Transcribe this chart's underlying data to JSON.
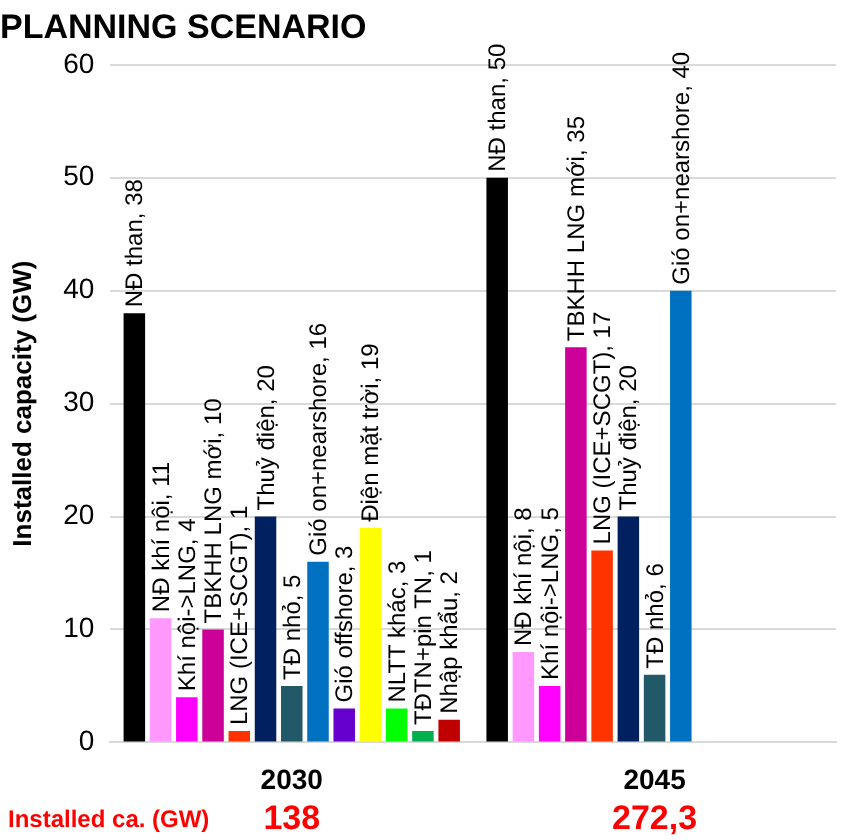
{
  "chart_data": {
    "type": "bar",
    "title": "PLANNING SCENARIO",
    "ylabel": "Installed capacity (GW)",
    "categories": [
      "2030",
      "2045"
    ],
    "series": [
      {
        "color": "#000000",
        "values": [
          38,
          50
        ],
        "value_labels": [
          "NĐ than, 38",
          "NĐ than, 50"
        ]
      },
      {
        "color": "#ff99ff",
        "values": [
          11,
          8
        ],
        "value_labels": [
          "NĐ khí nội, 11",
          "NĐ khí nội, 8"
        ]
      },
      {
        "color": "#ff00ff",
        "values": [
          4,
          5
        ],
        "value_labels": [
          "Khí nội->LNG, 4",
          "Khí nội->LNG, 5"
        ]
      },
      {
        "color": "#cc0099",
        "values": [
          10,
          35
        ],
        "value_labels": [
          "TBKHH LNG mới, 10",
          "TBKHH LNG mới, 35"
        ]
      },
      {
        "color": "#ff3300",
        "values": [
          1,
          17
        ],
        "value_labels": [
          "LNG (ICE+SCGT), 1",
          "LNG (ICE+SCGT), 17"
        ]
      },
      {
        "color": "#002060",
        "values": [
          20,
          20
        ],
        "value_labels": [
          "Thuỷ điện, 20",
          "Thuỷ điện, 20"
        ]
      },
      {
        "color": "#215968",
        "values": [
          5,
          6
        ],
        "value_labels": [
          "TĐ nhỏ, 5",
          "TĐ nhỏ, 6"
        ]
      },
      {
        "color": "#0070c0",
        "values": [
          16,
          40
        ],
        "value_labels": [
          "Gió on+nearshore, 16",
          "Gió on+nearshore, 40"
        ]
      },
      {
        "color": "#6600cc",
        "values": [
          3,
          null
        ],
        "value_labels": [
          "Gió offshore, 3",
          null
        ]
      },
      {
        "color": "#ffff00",
        "values": [
          19,
          null
        ],
        "value_labels": [
          "Điện mặt trời, 19",
          null
        ]
      },
      {
        "color": "#00ff00",
        "values": [
          3,
          null
        ],
        "value_labels": [
          "NLTT khác, 3",
          null
        ]
      },
      {
        "color": "#00b050",
        "values": [
          1,
          null
        ],
        "value_labels": [
          "TĐTN+pin TN, 1",
          null
        ]
      },
      {
        "color": "#c00000",
        "values": [
          2,
          null
        ],
        "value_labels": [
          "Nhập khẩu, 2",
          null
        ]
      }
    ],
    "ylim": [
      0,
      60
    ],
    "yticks": [
      0,
      10,
      20,
      30,
      40,
      50,
      60
    ],
    "grid": "y",
    "legend": false,
    "annotations": [
      "Installed ca. (GW)",
      "138",
      "272,3"
    ]
  }
}
